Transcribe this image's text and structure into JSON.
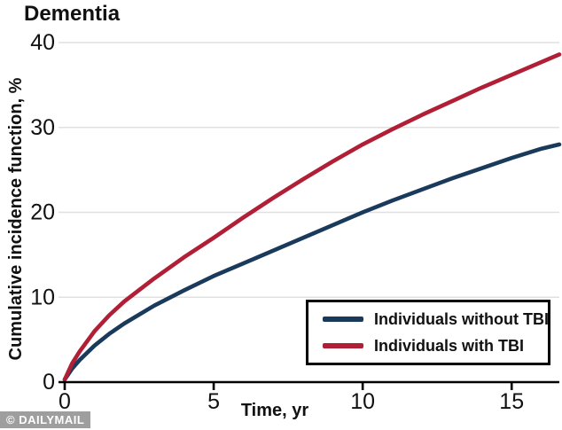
{
  "watermark": "© DAILYMAIL",
  "chart_data": {
    "type": "line",
    "title": "Dementia",
    "xlabel": "Time, yr",
    "ylabel": "Cumulative incidence function, %",
    "xlim": [
      0,
      16.6
    ],
    "ylim": [
      0,
      40
    ],
    "x_ticks": [
      0,
      5,
      10,
      15
    ],
    "y_ticks": [
      0,
      10,
      20,
      30,
      40
    ],
    "grid": "horizontal",
    "grid_color": "#e0e0e0",
    "axis_color": "#000000",
    "legend_position": "lower-right",
    "x": [
      0,
      0.25,
      0.5,
      1,
      1.5,
      2,
      3,
      4,
      5,
      6,
      7,
      8,
      9,
      10,
      11,
      12,
      13,
      14,
      15,
      16,
      16.6
    ],
    "series": [
      {
        "name": "Individuals without TBI",
        "color": "#1a3a5c",
        "values": [
          0.3,
          1.6,
          2.6,
          4.3,
          5.7,
          6.9,
          9.0,
          10.8,
          12.5,
          14.0,
          15.5,
          17.0,
          18.5,
          20.0,
          21.4,
          22.7,
          24.0,
          25.2,
          26.4,
          27.5,
          28.0
        ]
      },
      {
        "name": "Individuals with TBI",
        "color": "#b01f35",
        "values": [
          0.3,
          2.2,
          3.6,
          6.0,
          7.9,
          9.5,
          12.2,
          14.7,
          17.0,
          19.4,
          21.7,
          23.9,
          26.0,
          28.0,
          29.8,
          31.5,
          33.1,
          34.7,
          36.2,
          37.7,
          38.6
        ]
      }
    ]
  }
}
